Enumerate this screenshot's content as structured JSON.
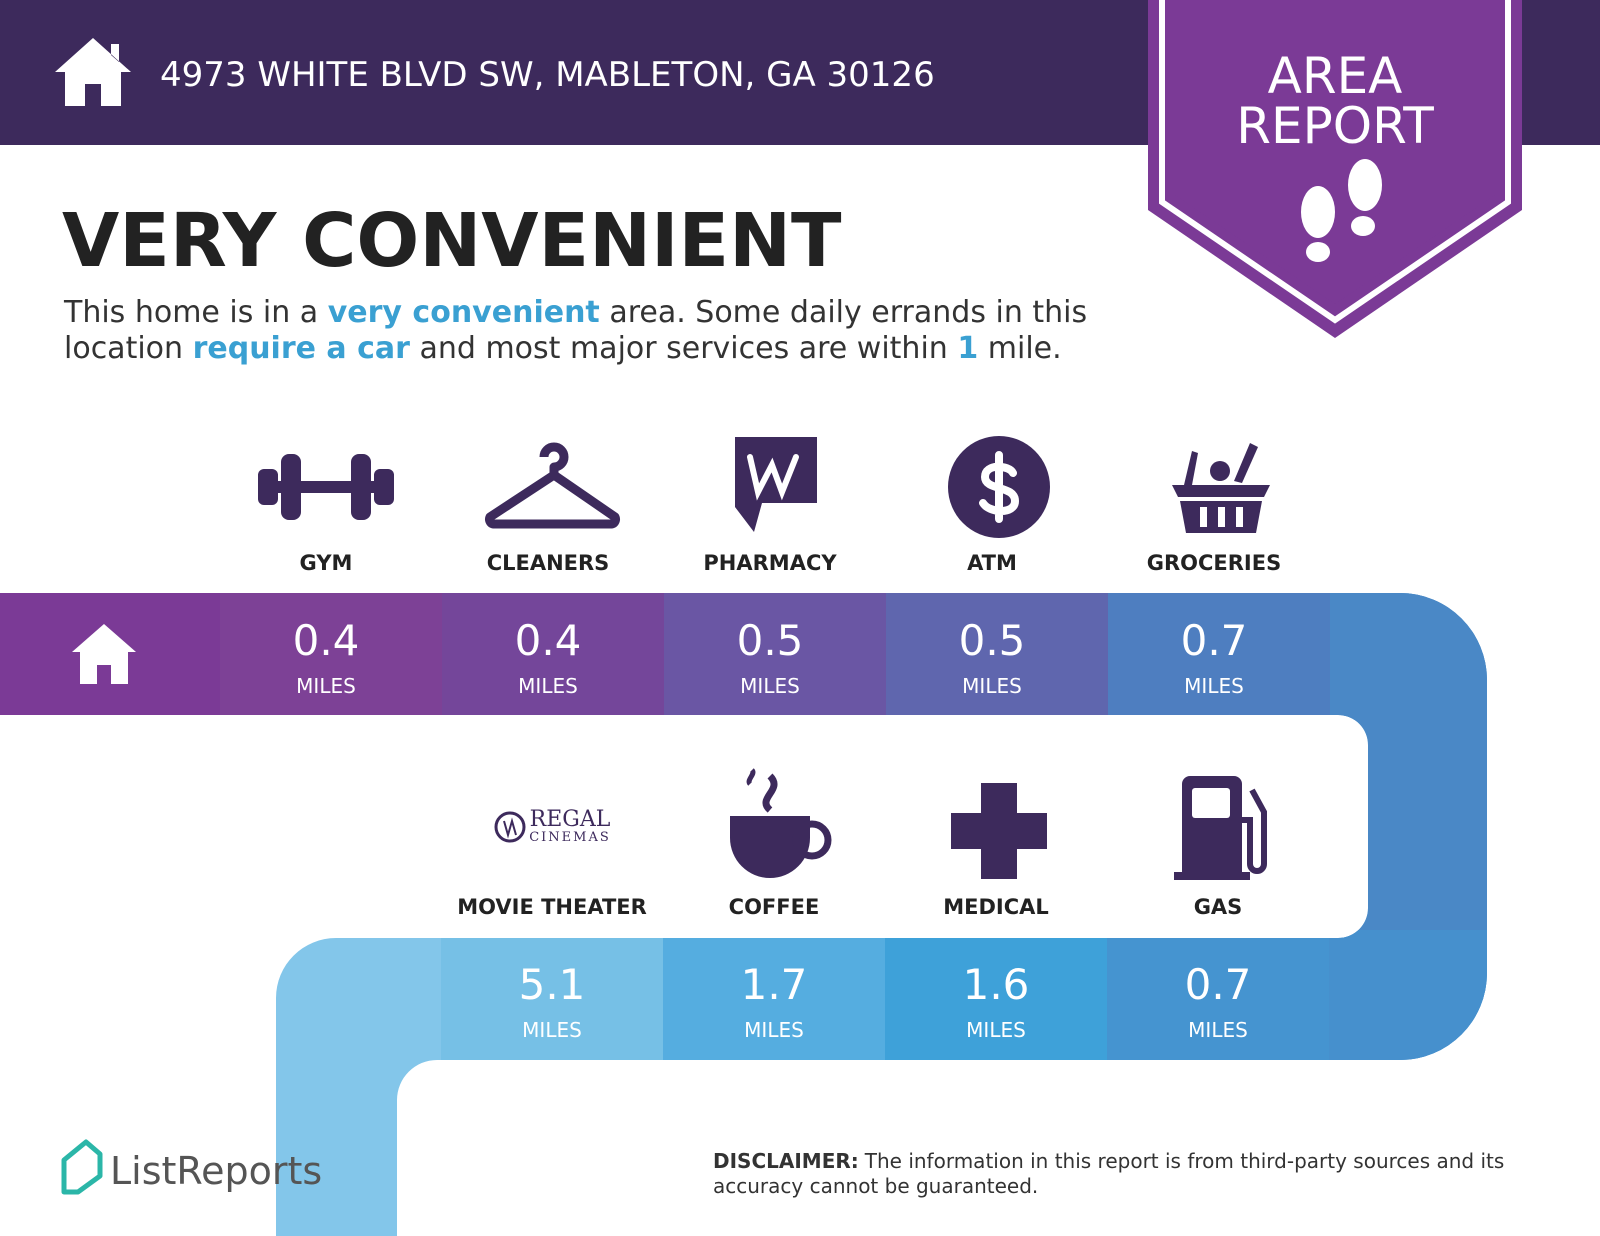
{
  "header": {
    "address": "4973 WHITE BLVD SW, MABLETON, GA 30126"
  },
  "badge": {
    "lines": [
      "AREA",
      "REPORT"
    ]
  },
  "headline": "VERY CONVENIENT",
  "description": {
    "highlight_color": "#3aa0d2",
    "lines": [
      [
        {
          "text": "This home is in a "
        },
        {
          "text": "very convenient",
          "highlight": true
        },
        {
          "text": " area. Some daily errands in this"
        }
      ],
      [
        {
          "text": "location "
        },
        {
          "text": "require a car",
          "highlight": true
        },
        {
          "text": " and most major services are within "
        },
        {
          "text": "1",
          "highlight": true
        },
        {
          "text": " mile."
        }
      ]
    ]
  },
  "services": {
    "top": [
      {
        "label": "GYM",
        "distance": 0.4,
        "unit": "MILES"
      },
      {
        "label": "CLEANERS",
        "distance": 0.4,
        "unit": "MILES"
      },
      {
        "label": "PHARMACY",
        "distance": 0.5,
        "unit": "MILES"
      },
      {
        "label": "ATM",
        "distance": 0.5,
        "unit": "MILES"
      },
      {
        "label": "GROCERIES",
        "distance": 0.7,
        "unit": "MILES"
      }
    ],
    "bottom": [
      {
        "label": "MOVIE THEATER",
        "distance": 5.1,
        "unit": "MILES"
      },
      {
        "label": "COFFEE",
        "distance": 1.7,
        "unit": "MILES"
      },
      {
        "label": "MEDICAL",
        "distance": 1.6,
        "unit": "MILES"
      },
      {
        "label": "GAS",
        "distance": 0.7,
        "unit": "MILES"
      }
    ]
  },
  "regal_logo": [
    "REGAL",
    "CINEMAS"
  ],
  "footer": {
    "brand": "ListReports",
    "disclaimer_label": "DISCLAIMER:",
    "disclaimer_lines": [
      "The information in this report is from third-party sources and its",
      "accuracy cannot be guaranteed."
    ]
  }
}
